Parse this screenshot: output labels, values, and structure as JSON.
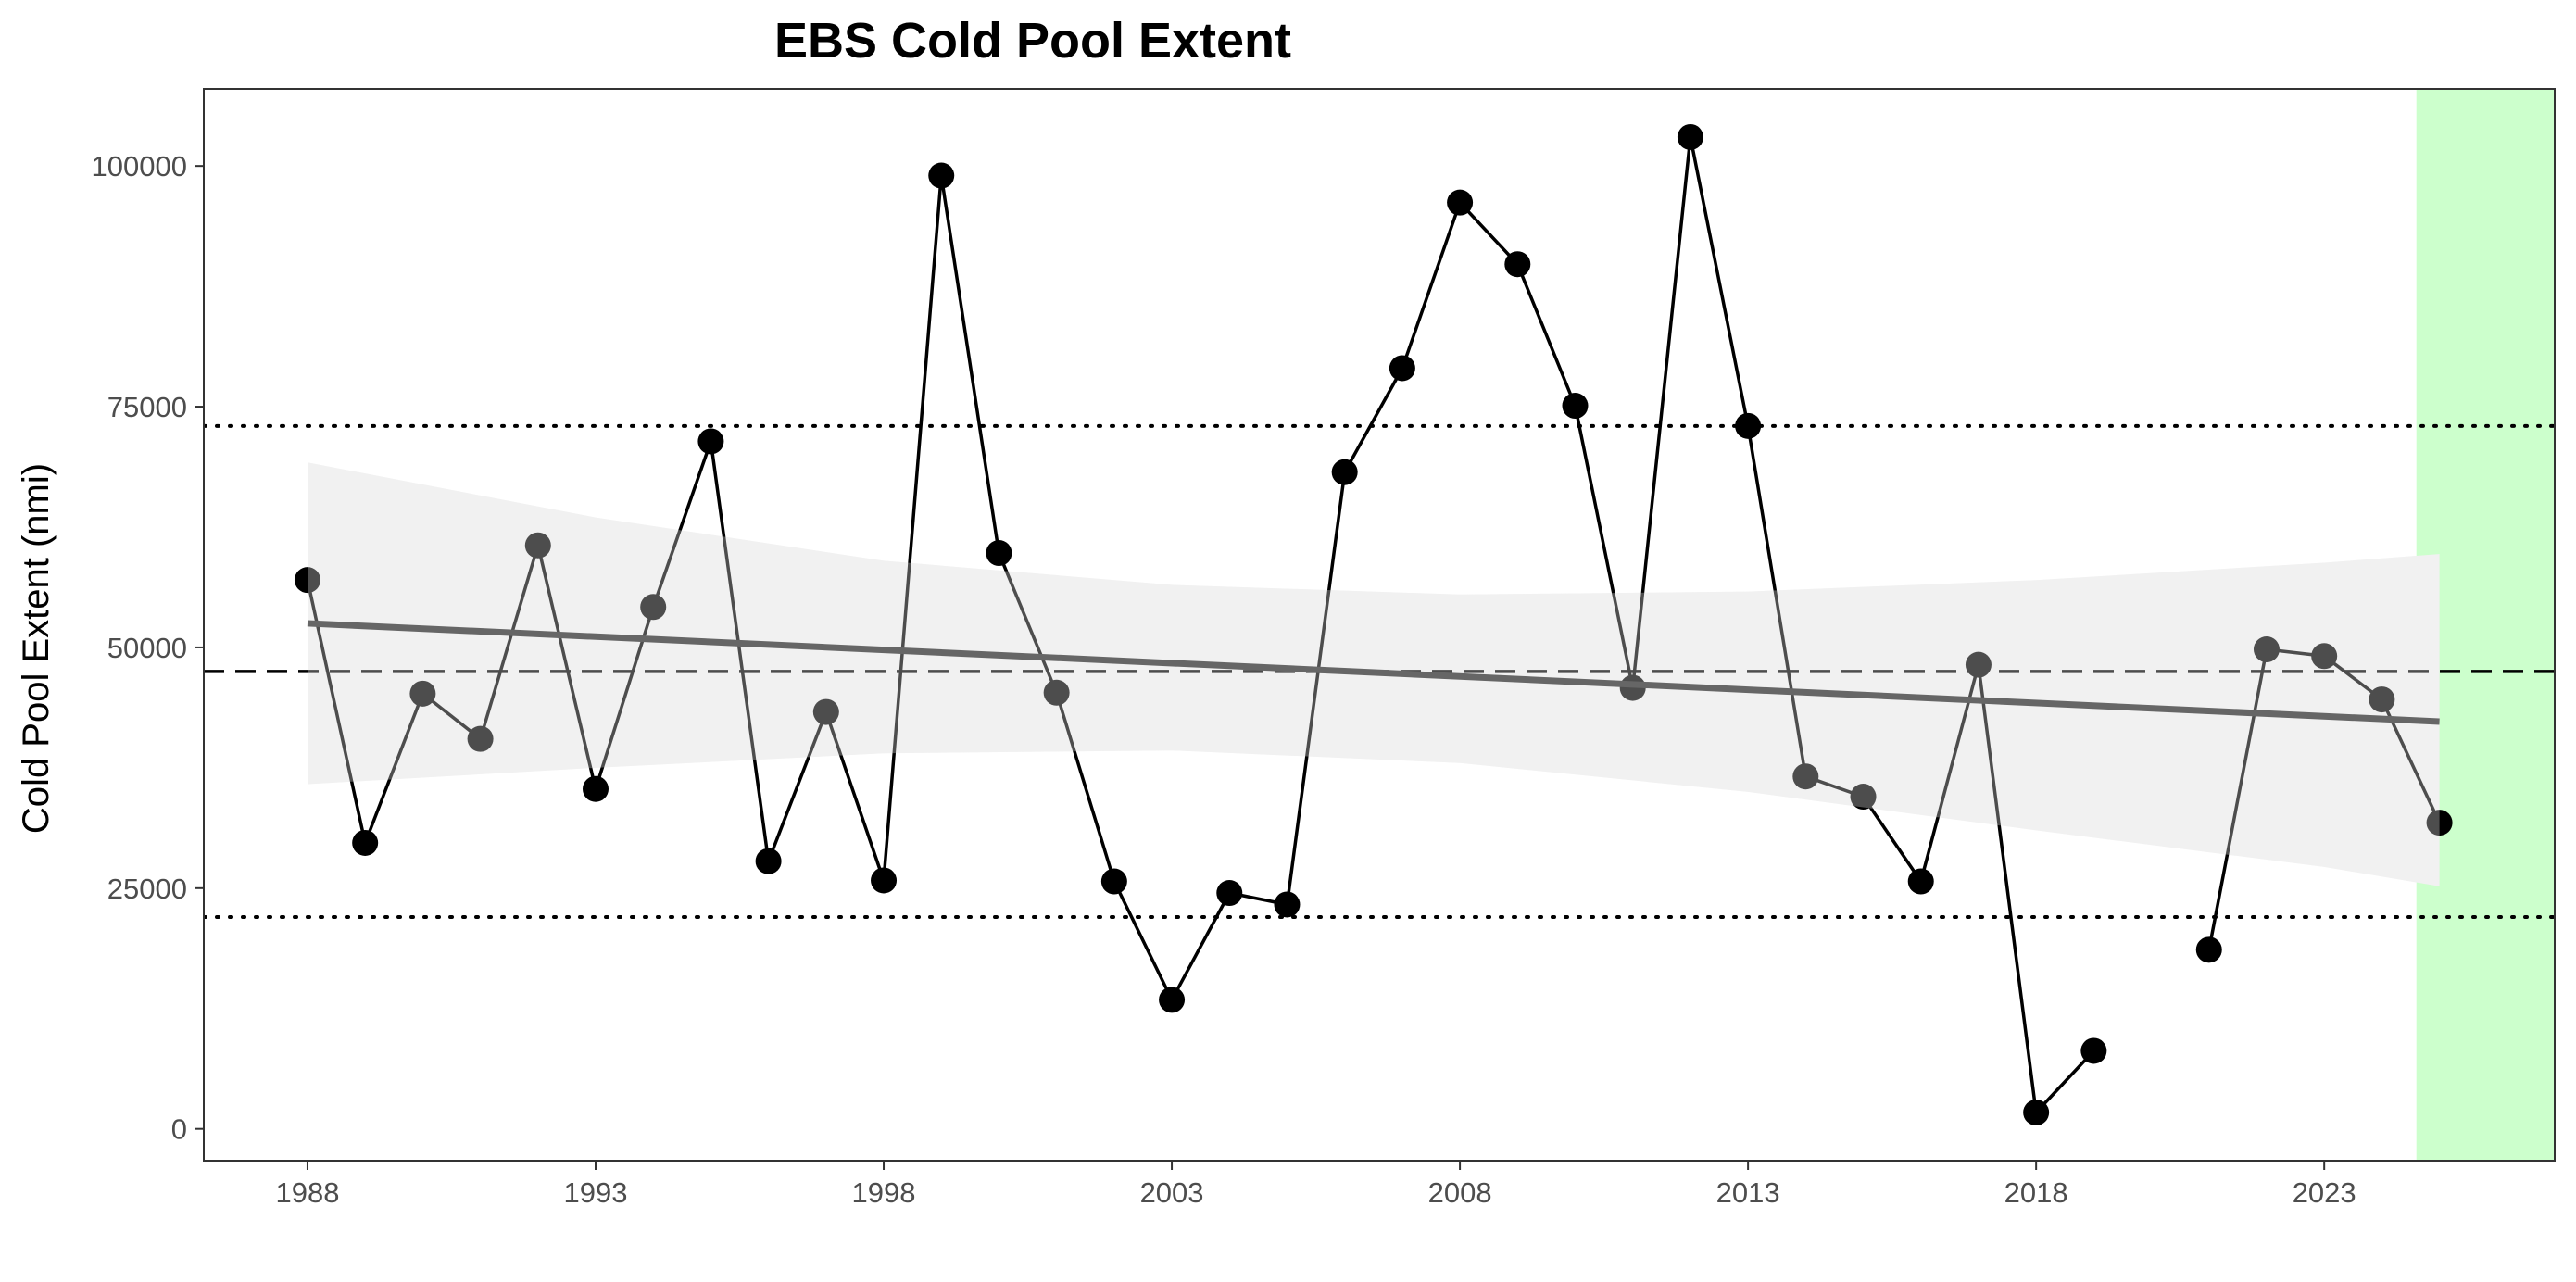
{
  "chart_data": {
    "type": "line",
    "title": "EBS Cold Pool Extent",
    "xlabel": "",
    "ylabel": "Cold Pool Extent (nmi)",
    "xlim": [
      1986.2,
      2027.0
    ],
    "ylim": [
      -3300,
      108000
    ],
    "x_ticks": [
      1988,
      1993,
      1998,
      2003,
      2008,
      2013,
      2018,
      2023
    ],
    "y_ticks": [
      0,
      25000,
      50000,
      75000,
      100000
    ],
    "mean_line": 47500,
    "sd_lines": [
      22000,
      73000
    ],
    "highlight_range": [
      2024.6,
      2027.0
    ],
    "trend": {
      "x": [
        1988,
        2025
      ],
      "y": [
        52500,
        42300
      ]
    },
    "confidence_band": {
      "x": [
        1988,
        1993,
        1998,
        2003,
        2008,
        2013,
        2018,
        2023,
        2025
      ],
      "upper": [
        69200,
        63500,
        59000,
        56500,
        55500,
        55800,
        57000,
        58800,
        59700
      ],
      "lower": [
        35800,
        37500,
        39000,
        39300,
        38000,
        35000,
        31000,
        27200,
        25200
      ]
    },
    "series": [
      {
        "x": [
          1988,
          1989,
          1990,
          1991,
          1992,
          1993,
          1994,
          1995,
          1996,
          1997,
          1998,
          1999,
          2000,
          2001,
          2002,
          2003,
          2004,
          2005,
          2006,
          2007,
          2008,
          2009,
          2010,
          2011,
          2012,
          2013,
          2014,
          2015,
          2016,
          2017,
          2018,
          2019,
          null,
          2021,
          2022,
          2023,
          2024,
          2025
        ],
        "values": [
          57000,
          29700,
          45200,
          40500,
          60600,
          35300,
          54200,
          71400,
          27800,
          43300,
          25800,
          99000,
          59800,
          45300,
          25700,
          13400,
          24500,
          23300,
          68200,
          79000,
          96200,
          89800,
          75100,
          45800,
          103000,
          73000,
          36600,
          34500,
          25700,
          48200,
          1700,
          8100,
          null,
          18600,
          49800,
          49100,
          44600,
          31800
        ]
      }
    ],
    "colors": {
      "series": "#000000",
      "trend": "#666666",
      "band": "#ebebeb",
      "highlight": "#ccffcc",
      "reference": "#000000",
      "tick_text": "#4d4d4d",
      "axis": "#333333"
    }
  }
}
